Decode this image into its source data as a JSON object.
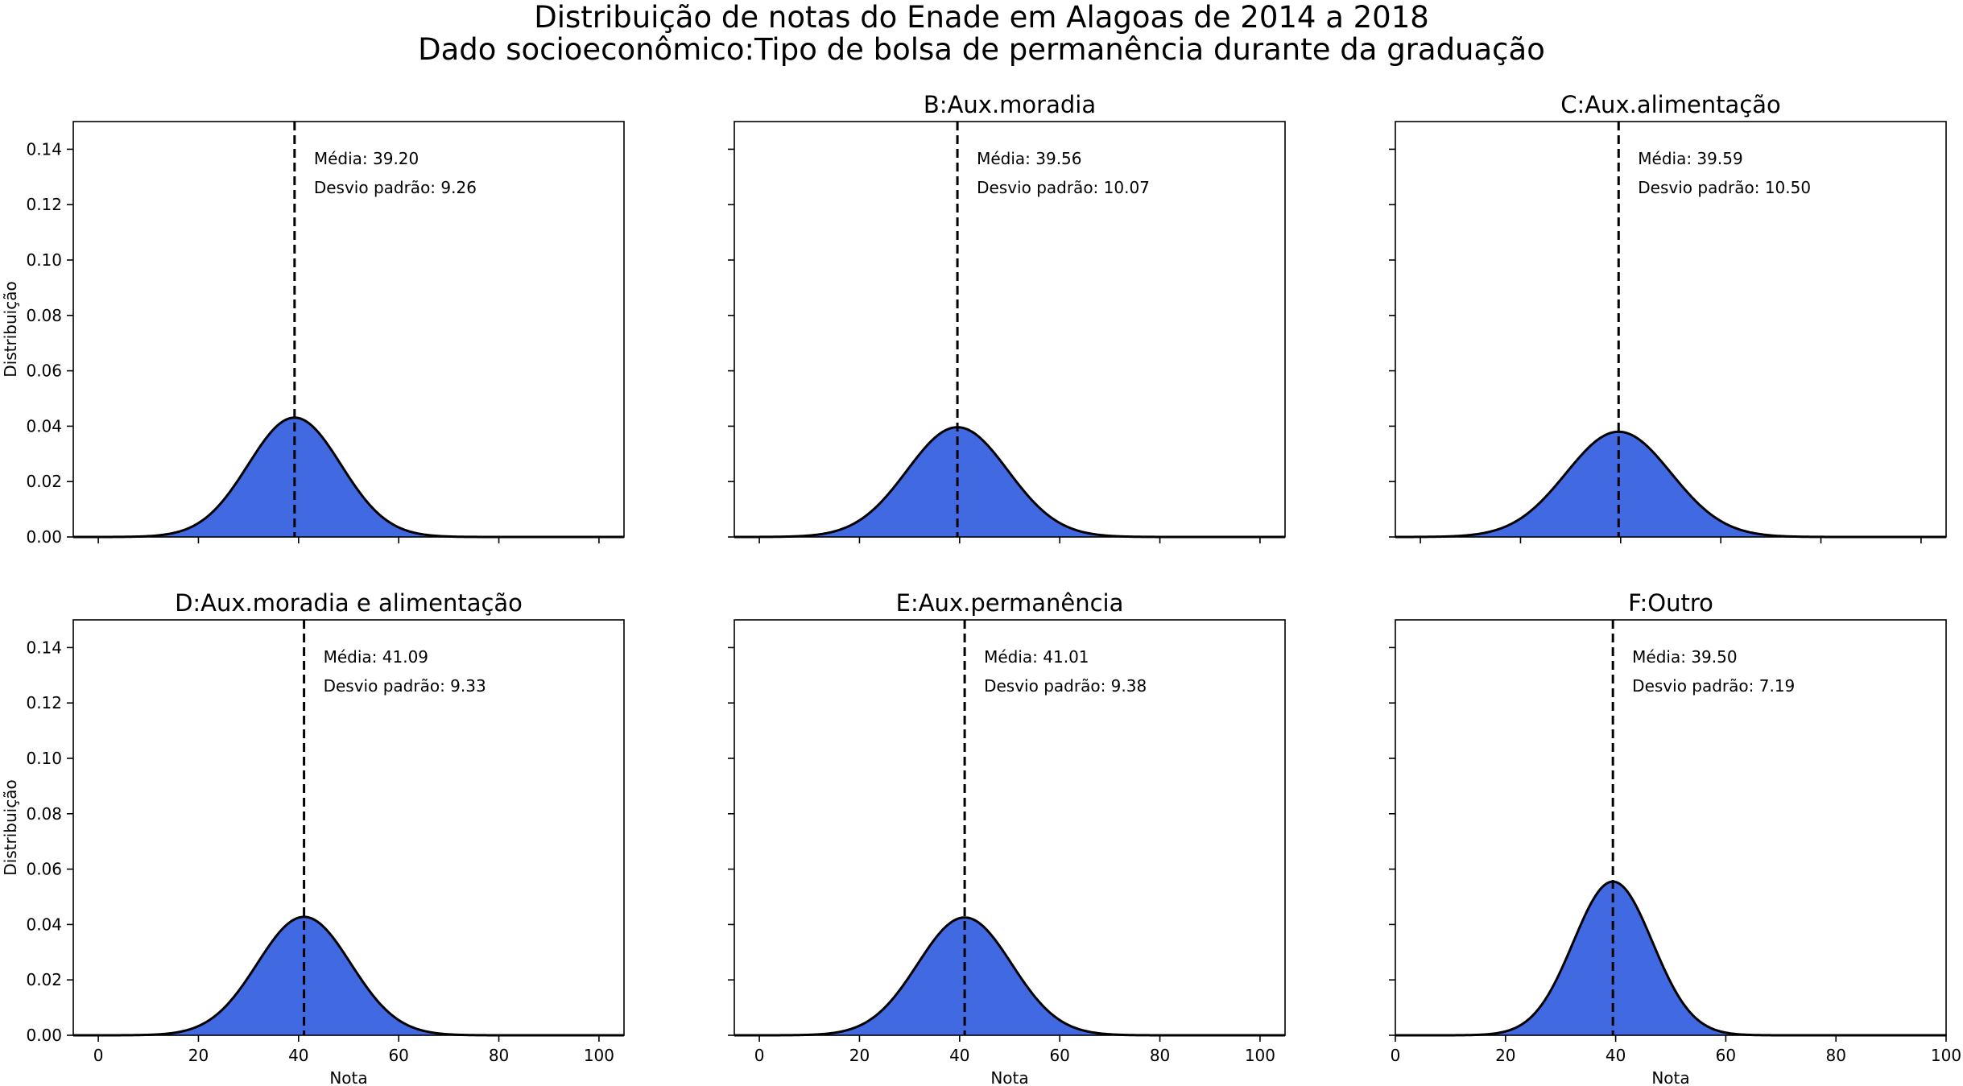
{
  "figure": {
    "title_line1": "Distribuição de notas do Enade em Alagoas de 2014 a 2018",
    "title_line2": "Dado socioeconômico:Tipo de bolsa de permanência durante da graduação"
  },
  "chart_data": [
    {
      "type": "area",
      "title": "",
      "xlabel": "",
      "ylabel": "Distribuição",
      "xlim": [
        -5,
        105
      ],
      "ylim": [
        0,
        0.15
      ],
      "x_ticks": [
        0,
        20,
        40,
        60,
        80,
        100
      ],
      "x_tick_labels_visible": false,
      "y_ticks": [
        0.0,
        0.02,
        0.04,
        0.06,
        0.08,
        0.1,
        0.12,
        0.14
      ],
      "y_tick_labels_visible": true,
      "mean": 39.2,
      "std": 9.26,
      "annotation_mean": "Média: 39.20",
      "annotation_std": "Desvio padrão: 9.26",
      "fill_color": "#4169e1"
    },
    {
      "type": "area",
      "title": "B:Aux.moradia",
      "xlabel": "",
      "ylabel": "",
      "xlim": [
        -5,
        105
      ],
      "ylim": [
        0,
        0.15
      ],
      "x_ticks": [
        0,
        20,
        40,
        60,
        80,
        100
      ],
      "x_tick_labels_visible": false,
      "y_ticks": [
        0.0,
        0.02,
        0.04,
        0.06,
        0.08,
        0.1,
        0.12,
        0.14
      ],
      "y_tick_labels_visible": false,
      "mean": 39.56,
      "std": 10.07,
      "annotation_mean": "Média: 39.56",
      "annotation_std": "Desvio padrão: 10.07",
      "fill_color": "#4169e1"
    },
    {
      "type": "area",
      "title": "C:Aux.alimentação",
      "xlabel": "",
      "ylabel": "",
      "xlim": [
        -5,
        105
      ],
      "ylim": [
        0,
        0.15
      ],
      "x_ticks": [
        0,
        20,
        40,
        60,
        80,
        100
      ],
      "x_tick_labels_visible": false,
      "y_ticks": [
        0.0,
        0.02,
        0.04,
        0.06,
        0.08,
        0.1,
        0.12,
        0.14
      ],
      "y_tick_labels_visible": false,
      "mean": 39.59,
      "std": 10.5,
      "annotation_mean": "Média: 39.59",
      "annotation_std": "Desvio padrão: 10.50",
      "fill_color": "#4169e1"
    },
    {
      "type": "area",
      "title": "D:Aux.moradia e alimentação",
      "xlabel": "Nota",
      "ylabel": "Distribuição",
      "xlim": [
        -5,
        105
      ],
      "ylim": [
        0,
        0.15
      ],
      "x_ticks": [
        0,
        20,
        40,
        60,
        80,
        100
      ],
      "x_tick_labels_visible": true,
      "y_ticks": [
        0.0,
        0.02,
        0.04,
        0.06,
        0.08,
        0.1,
        0.12,
        0.14
      ],
      "y_tick_labels_visible": true,
      "mean": 41.09,
      "std": 9.33,
      "annotation_mean": "Média: 41.09",
      "annotation_std": "Desvio padrão: 9.33",
      "fill_color": "#4169e1"
    },
    {
      "type": "area",
      "title": "E:Aux.permanência",
      "xlabel": "Nota",
      "ylabel": "",
      "xlim": [
        -5,
        105
      ],
      "ylim": [
        0,
        0.15
      ],
      "x_ticks": [
        0,
        20,
        40,
        60,
        80,
        100
      ],
      "x_tick_labels_visible": true,
      "y_ticks": [
        0.0,
        0.02,
        0.04,
        0.06,
        0.08,
        0.1,
        0.12,
        0.14
      ],
      "y_tick_labels_visible": false,
      "mean": 41.01,
      "std": 9.38,
      "annotation_mean": "Média: 41.01",
      "annotation_std": "Desvio padrão: 9.38",
      "fill_color": "#4169e1"
    },
    {
      "type": "area",
      "title": "F:Outro",
      "xlabel": "Nota",
      "ylabel": "",
      "xlim": [
        0,
        100
      ],
      "ylim": [
        0,
        0.15
      ],
      "x_ticks": [
        0,
        20,
        40,
        60,
        80,
        100
      ],
      "x_tick_labels_visible": true,
      "y_ticks": [
        0.0,
        0.02,
        0.04,
        0.06,
        0.08,
        0.1,
        0.12,
        0.14
      ],
      "y_tick_labels_visible": false,
      "mean": 39.5,
      "std": 7.19,
      "annotation_mean": "Média: 39.50",
      "annotation_std": "Desvio padrão: 7.19",
      "fill_color": "#4169e1"
    }
  ]
}
